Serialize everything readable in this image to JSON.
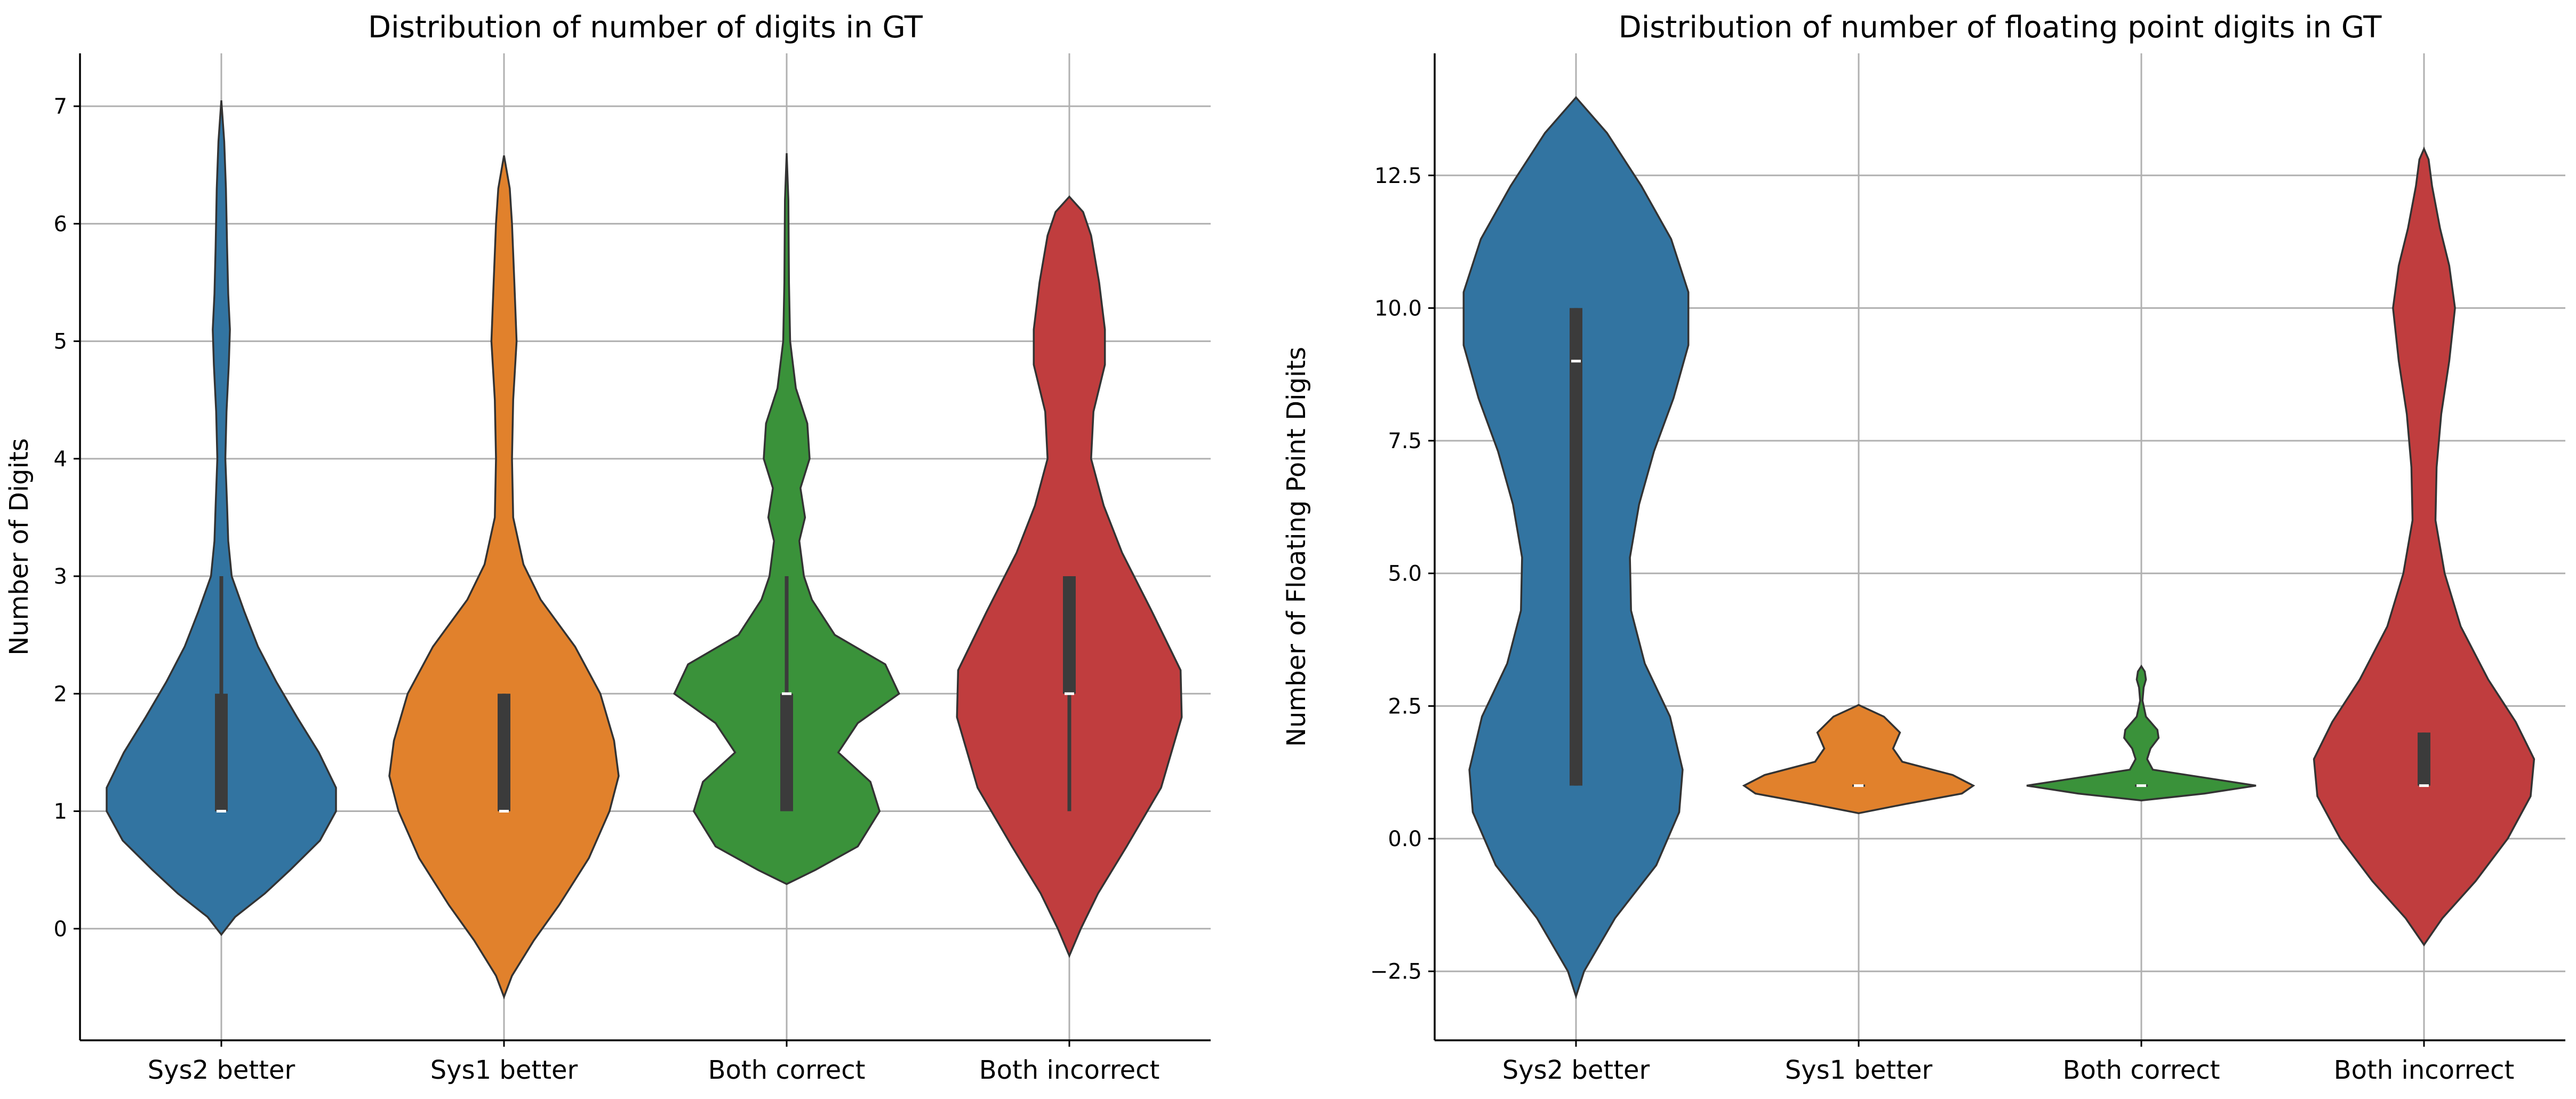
{
  "chart_data": [
    {
      "type": "violin",
      "title": "Distribution of number of digits in GT",
      "xlabel": "",
      "ylabel": "Number of Digits",
      "ylim": [
        -0.95,
        7.45
      ],
      "yticks": [
        0,
        1,
        2,
        3,
        4,
        5,
        6,
        7
      ],
      "ytick_labels": [
        "0",
        "1",
        "2",
        "3",
        "4",
        "5",
        "6",
        "7"
      ],
      "grid": true,
      "categories": [
        "Sys2 better",
        "Sys1 better",
        "Both correct",
        "Both incorrect"
      ],
      "colors": [
        "#3274a1",
        "#e1812c",
        "#3a923a",
        "#c03d3e"
      ],
      "series": [
        {
          "name": "Sys2 better",
          "q1": 1,
          "median": 1,
          "q3": 2,
          "whisker_low": 1,
          "whisker_high": 3,
          "density_min": -0.05,
          "density_max": 7.05,
          "profile": [
            [
              -0.05,
              0
            ],
            [
              0.1,
              0.12
            ],
            [
              0.3,
              0.38
            ],
            [
              0.5,
              0.6
            ],
            [
              0.75,
              0.86
            ],
            [
              1.0,
              1.0
            ],
            [
              1.2,
              1.0
            ],
            [
              1.5,
              0.85
            ],
            [
              1.8,
              0.66
            ],
            [
              2.1,
              0.48
            ],
            [
              2.4,
              0.32
            ],
            [
              2.7,
              0.2
            ],
            [
              3.0,
              0.09
            ],
            [
              3.3,
              0.06
            ],
            [
              3.6,
              0.05
            ],
            [
              4.0,
              0.035
            ],
            [
              4.4,
              0.045
            ],
            [
              4.8,
              0.065
            ],
            [
              5.1,
              0.075
            ],
            [
              5.4,
              0.06
            ],
            [
              5.8,
              0.05
            ],
            [
              6.3,
              0.04
            ],
            [
              6.7,
              0.025
            ],
            [
              7.05,
              0
            ]
          ]
        },
        {
          "name": "Sys1 better",
          "q1": 1,
          "median": 1,
          "q3": 2,
          "whisker_low": 1,
          "whisker_high": 2,
          "density_min": -0.58,
          "density_max": 6.58,
          "profile": [
            [
              -0.58,
              0
            ],
            [
              -0.4,
              0.07
            ],
            [
              -0.1,
              0.26
            ],
            [
              0.2,
              0.48
            ],
            [
              0.6,
              0.74
            ],
            [
              1.0,
              0.92
            ],
            [
              1.3,
              1.0
            ],
            [
              1.6,
              0.96
            ],
            [
              2.0,
              0.84
            ],
            [
              2.4,
              0.62
            ],
            [
              2.8,
              0.32
            ],
            [
              3.1,
              0.17
            ],
            [
              3.5,
              0.08
            ],
            [
              4.0,
              0.07
            ],
            [
              4.5,
              0.08
            ],
            [
              5.0,
              0.11
            ],
            [
              5.5,
              0.09
            ],
            [
              6.0,
              0.07
            ],
            [
              6.3,
              0.05
            ],
            [
              6.58,
              0
            ]
          ]
        },
        {
          "name": "Both correct",
          "q1": 1,
          "median": 2,
          "q3": 2,
          "whisker_low": 1,
          "whisker_high": 3,
          "density_min": 0.38,
          "density_max": 6.6,
          "profile": [
            [
              0.38,
              0
            ],
            [
              0.5,
              0.25
            ],
            [
              0.7,
              0.62
            ],
            [
              1.0,
              0.81
            ],
            [
              1.25,
              0.73
            ],
            [
              1.5,
              0.45
            ],
            [
              1.75,
              0.62
            ],
            [
              2.0,
              0.98
            ],
            [
              2.25,
              0.86
            ],
            [
              2.5,
              0.42
            ],
            [
              2.8,
              0.22
            ],
            [
              3.0,
              0.15
            ],
            [
              3.3,
              0.11
            ],
            [
              3.5,
              0.16
            ],
            [
              3.75,
              0.12
            ],
            [
              4.0,
              0.2
            ],
            [
              4.3,
              0.18
            ],
            [
              4.6,
              0.08
            ],
            [
              5.0,
              0.03
            ],
            [
              5.5,
              0.02
            ],
            [
              6.2,
              0.015
            ],
            [
              6.6,
              0
            ]
          ]
        },
        {
          "name": "Both incorrect",
          "q1": 2,
          "median": 2,
          "q3": 3,
          "whisker_low": 1,
          "whisker_high": 3,
          "density_min": -0.23,
          "density_max": 6.23,
          "profile": [
            [
              -0.23,
              0
            ],
            [
              0.0,
              0.1
            ],
            [
              0.3,
              0.25
            ],
            [
              0.7,
              0.5
            ],
            [
              1.2,
              0.8
            ],
            [
              1.8,
              0.98
            ],
            [
              2.2,
              0.97
            ],
            [
              2.7,
              0.72
            ],
            [
              3.2,
              0.46
            ],
            [
              3.6,
              0.3
            ],
            [
              4.0,
              0.19
            ],
            [
              4.4,
              0.21
            ],
            [
              4.8,
              0.31
            ],
            [
              5.1,
              0.31
            ],
            [
              5.5,
              0.26
            ],
            [
              5.9,
              0.19
            ],
            [
              6.1,
              0.12
            ],
            [
              6.23,
              0
            ]
          ]
        }
      ]
    },
    {
      "type": "violin",
      "title": "Distribution of number of floating point digits in GT",
      "xlabel": "",
      "ylabel": "Number of Floating Point Digits",
      "ylim": [
        -3.8,
        14.8
      ],
      "yticks": [
        -2.5,
        0,
        2.5,
        5,
        7.5,
        10,
        12.5
      ],
      "ytick_labels": [
        "−2.5",
        "0.0",
        "2.5",
        "5.0",
        "7.5",
        "10.0",
        "12.5"
      ],
      "grid": true,
      "categories": [
        "Sys2 better",
        "Sys1 better",
        "Both correct",
        "Both incorrect"
      ],
      "colors": [
        "#3274a1",
        "#e1812c",
        "#3a923a",
        "#c03d3e"
      ],
      "series": [
        {
          "name": "Sys2 better",
          "q1": 1,
          "median": 9,
          "q3": 10,
          "whisker_low": 1,
          "whisker_high": 10,
          "density_min": -2.97,
          "density_max": 13.97,
          "profile": [
            [
              -2.97,
              0
            ],
            [
              -2.5,
              0.07
            ],
            [
              -1.5,
              0.34
            ],
            [
              -0.5,
              0.7
            ],
            [
              0.5,
              0.9
            ],
            [
              1.3,
              0.93
            ],
            [
              2.3,
              0.82
            ],
            [
              3.3,
              0.6
            ],
            [
              4.3,
              0.48
            ],
            [
              5.3,
              0.47
            ],
            [
              6.3,
              0.55
            ],
            [
              7.3,
              0.68
            ],
            [
              8.3,
              0.85
            ],
            [
              9.3,
              0.98
            ],
            [
              10.3,
              0.98
            ],
            [
              11.3,
              0.83
            ],
            [
              12.3,
              0.57
            ],
            [
              13.3,
              0.27
            ],
            [
              13.97,
              0
            ]
          ]
        },
        {
          "name": "Sys1 better",
          "q1": 1,
          "median": 1,
          "q3": 1,
          "whisker_low": 1,
          "whisker_high": 1,
          "density_min": 0.48,
          "density_max": 2.52,
          "profile": [
            [
              0.48,
              0
            ],
            [
              0.65,
              0.4
            ],
            [
              0.85,
              0.9
            ],
            [
              1.0,
              1.0
            ],
            [
              1.2,
              0.82
            ],
            [
              1.45,
              0.38
            ],
            [
              1.7,
              0.3
            ],
            [
              2.0,
              0.36
            ],
            [
              2.3,
              0.22
            ],
            [
              2.52,
              0
            ]
          ]
        },
        {
          "name": "Both correct",
          "q1": 1,
          "median": 1,
          "q3": 1,
          "whisker_low": 1,
          "whisker_high": 1,
          "density_min": 0.72,
          "density_max": 3.25,
          "profile": [
            [
              0.72,
              0
            ],
            [
              0.85,
              0.55
            ],
            [
              1.0,
              1.0
            ],
            [
              1.15,
              0.55
            ],
            [
              1.3,
              0.1
            ],
            [
              1.5,
              0.05
            ],
            [
              1.7,
              0.08
            ],
            [
              1.9,
              0.15
            ],
            [
              2.05,
              0.14
            ],
            [
              2.3,
              0.04
            ],
            [
              2.6,
              0.01
            ],
            [
              2.85,
              0.02
            ],
            [
              3.0,
              0.04
            ],
            [
              3.15,
              0.03
            ],
            [
              3.25,
              0
            ]
          ]
        },
        {
          "name": "Both incorrect",
          "q1": 1,
          "median": 1,
          "q3": 2,
          "whisker_low": 1,
          "whisker_high": 2,
          "density_min": -2.0,
          "density_max": 13.0,
          "profile": [
            [
              -2.0,
              0
            ],
            [
              -1.5,
              0.16
            ],
            [
              -0.8,
              0.45
            ],
            [
              0.0,
              0.73
            ],
            [
              0.8,
              0.93
            ],
            [
              1.5,
              0.96
            ],
            [
              2.2,
              0.8
            ],
            [
              3.0,
              0.56
            ],
            [
              4.0,
              0.32
            ],
            [
              5.0,
              0.18
            ],
            [
              6.0,
              0.1
            ],
            [
              7.0,
              0.11
            ],
            [
              8.0,
              0.15
            ],
            [
              9.0,
              0.22
            ],
            [
              10.0,
              0.27
            ],
            [
              10.8,
              0.22
            ],
            [
              11.5,
              0.14
            ],
            [
              12.3,
              0.07
            ],
            [
              12.8,
              0.04
            ],
            [
              13.0,
              0
            ]
          ]
        }
      ]
    }
  ]
}
